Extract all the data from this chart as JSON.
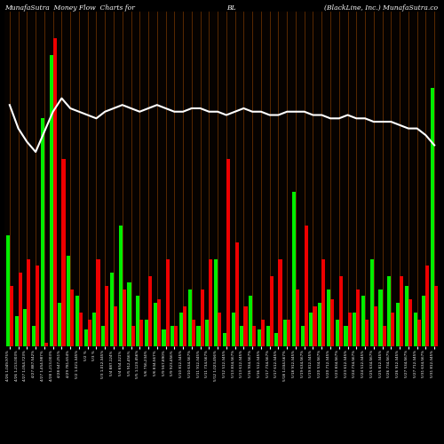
{
  "title_left": "MunafaSutra  Money Flow  Charts for",
  "title_mid": "BL",
  "title_right": "(BlackLine, Inc.) MunafaSutra.co",
  "bg_color": "#000000",
  "bar_area_bg": "#060200",
  "grid_color": "#7B3800",
  "green_color": "#00ee00",
  "red_color": "#ee0000",
  "line_color": "#ffffff",
  "bar_width": 0.42,
  "n_bars": 50,
  "green_bars": [
    33,
    9,
    11,
    6,
    68,
    87,
    13,
    27,
    15,
    5,
    10,
    6,
    22,
    36,
    19,
    15,
    8,
    13,
    5,
    6,
    10,
    17,
    6,
    8,
    26,
    4,
    10,
    6,
    15,
    5,
    6,
    4,
    8,
    46,
    6,
    10,
    13,
    17,
    8,
    6,
    10,
    15,
    26,
    17,
    21,
    13,
    18,
    10,
    15,
    77
  ],
  "red_bars": [
    18,
    22,
    26,
    24,
    1,
    92,
    56,
    17,
    10,
    8,
    26,
    18,
    12,
    17,
    6,
    8,
    21,
    14,
    26,
    6,
    12,
    8,
    17,
    26,
    10,
    56,
    31,
    12,
    6,
    8,
    21,
    26,
    8,
    17,
    36,
    12,
    26,
    14,
    21,
    10,
    17,
    8,
    12,
    6,
    10,
    21,
    14,
    8,
    24,
    18
  ],
  "line_values": [
    72,
    65,
    61,
    58,
    64,
    70,
    74,
    71,
    70,
    69,
    68,
    70,
    71,
    72,
    71,
    70,
    71,
    72,
    71,
    70,
    70,
    71,
    71,
    70,
    70,
    69,
    70,
    71,
    70,
    70,
    69,
    69,
    70,
    70,
    70,
    69,
    69,
    68,
    68,
    69,
    68,
    68,
    67,
    67,
    67,
    66,
    65,
    65,
    63,
    60
  ],
  "ylim_max": 100,
  "xlabels": [
    "4/26 1,049,975%",
    "4/26 1,213,003%",
    "4/27 1,054,723%",
    "4/27 887,542%",
    "4/27 1,454,987%",
    "4/28 1,213,003%",
    "4/28 647,251%",
    "4/29 781,654%",
    "5/2 1,021,345%",
    "5/2 %",
    "5/3 %",
    "5/3 1,012,345%",
    "5/4 887,124%",
    "5/4 654,321%",
    "5/5 912,456%",
    "5/5 1,123,456%",
    "5/6 756,234%",
    "5/6 834,567%",
    "5/9 567,890%",
    "5/9 923,456%",
    "5/10 812,345%",
    "5/10 634,567%",
    "5/11 912,345%",
    "5/11 734,567%",
    "5/12 1,023,456%",
    "5/12 512,345%",
    "5/13 834,567%",
    "5/13 612,345%",
    "5/16 934,567%",
    "5/16 512,345%",
    "5/17 734,567%",
    "5/17 612,345%",
    "5/18 1,034,567%",
    "5/18 912,345%",
    "5/19 634,567%",
    "5/19 812,345%",
    "5/20 534,567%",
    "5/20 712,345%",
    "5/23 834,567%",
    "5/23 612,345%",
    "5/24 734,567%",
    "5/24 512,345%",
    "5/25 634,567%",
    "5/25 812,345%",
    "5/26 734,567%",
    "5/26 912,345%",
    "5/27 534,567%",
    "5/27 712,345%",
    "5/31 634,567%",
    "5/31 812,345%"
  ]
}
